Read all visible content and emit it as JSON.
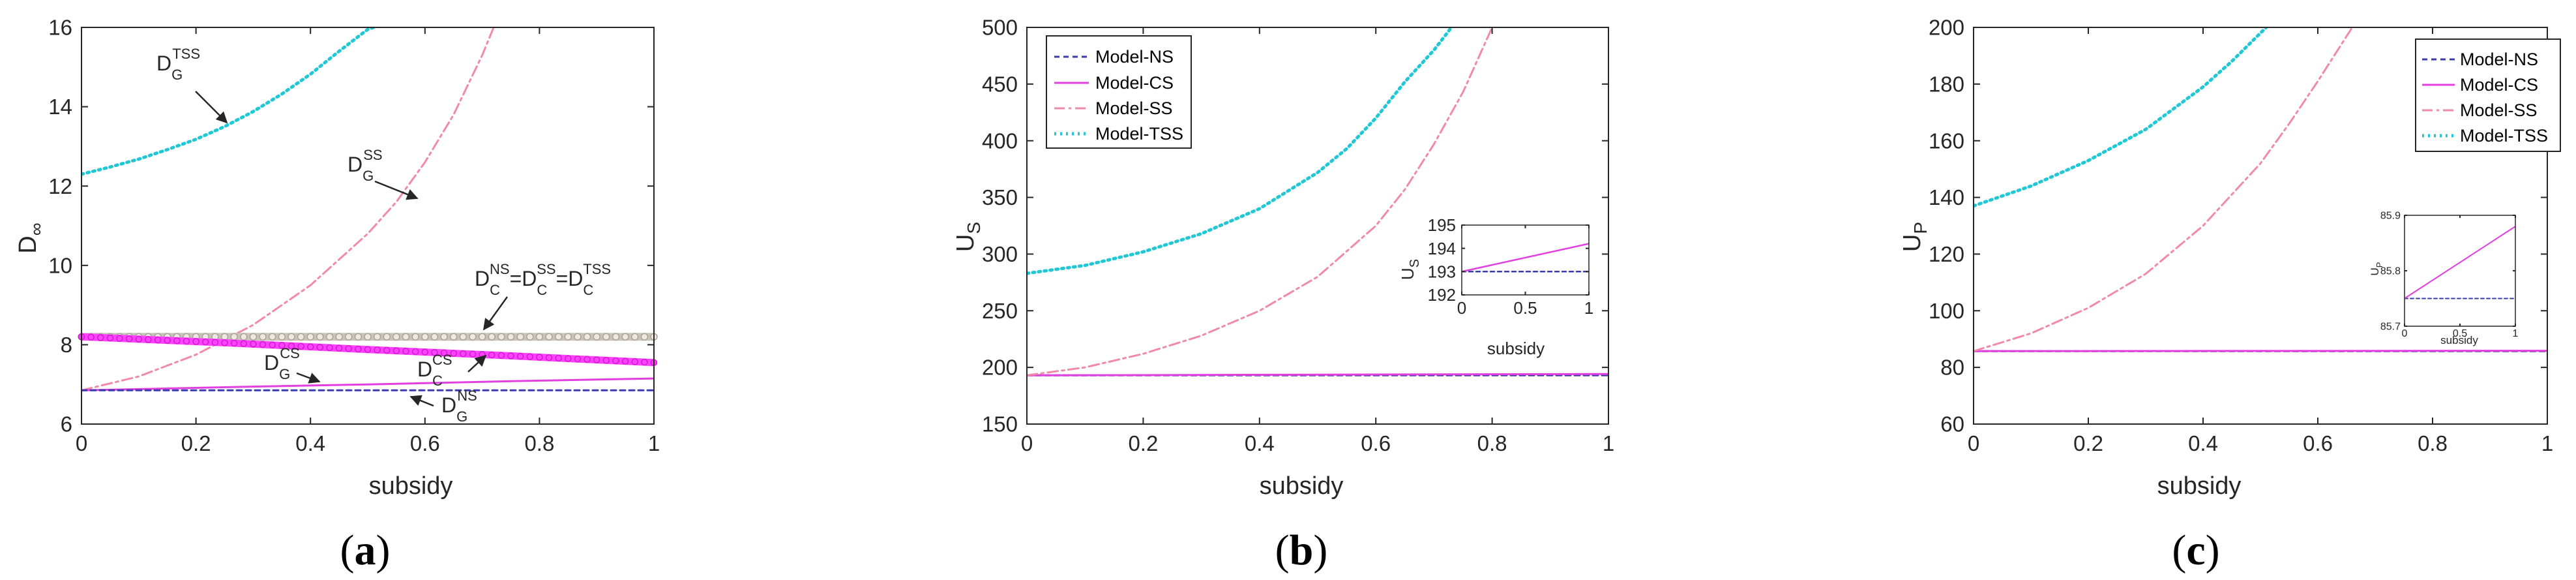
{
  "colors": {
    "ns": "#3b3bb0",
    "cs": "#e23fe0",
    "ss": "#f08aa8",
    "tss": "#22c7d6",
    "dc_ns_band": "#c9c3b8",
    "dc_cs_band": "#ff40ff",
    "axis": "#262626"
  },
  "legend_labels": [
    "Model-NS",
    "Model-CS",
    "Model-SS",
    "Model-TSS"
  ],
  "chart_data": [
    {
      "id": "a",
      "type": "line",
      "panel_label": "(a)",
      "panel_letter": "a",
      "xlabel": "subsidy",
      "ylabel_main": "D",
      "ylabel_sub": "∞",
      "xlim": [
        0,
        1
      ],
      "ylim": [
        6,
        16
      ],
      "xticks": [
        0,
        0.2,
        0.4,
        0.6,
        0.8,
        1
      ],
      "xtick_labels": [
        "0",
        "0.2",
        "0.4",
        "0.6",
        "0.8",
        "1"
      ],
      "yticks": [
        6,
        8,
        10,
        12,
        14,
        16
      ],
      "ytick_labels": [
        "6",
        "8",
        "10",
        "12",
        "14",
        "16"
      ],
      "series": [
        {
          "name": "D_G^TSS",
          "key": "tss",
          "dash": "3,6",
          "width": 5,
          "x": [
            0,
            0.05,
            0.1,
            0.15,
            0.2,
            0.25,
            0.3,
            0.35,
            0.4,
            0.45,
            0.5,
            0.51
          ],
          "y": [
            12.3,
            12.48,
            12.68,
            12.92,
            13.18,
            13.5,
            13.88,
            14.32,
            14.82,
            15.4,
            15.95,
            16.0
          ]
        },
        {
          "name": "D_G^SS",
          "key": "ss",
          "dash": "16,6,4,6",
          "width": 3,
          "x": [
            0,
            0.1,
            0.2,
            0.3,
            0.4,
            0.5,
            0.55,
            0.6,
            0.65,
            0.7,
            0.72
          ],
          "y": [
            6.85,
            7.2,
            7.75,
            8.5,
            9.5,
            10.8,
            11.6,
            12.6,
            13.8,
            15.3,
            16.0
          ]
        },
        {
          "name": "D_C^NS=D_C^SS=D_C^TSS",
          "key": "dc_ns_band",
          "dash": "",
          "width": 12,
          "x": [
            0,
            1
          ],
          "y": [
            8.2,
            8.2
          ]
        },
        {
          "name": "D_C^CS",
          "key": "dc_cs_band",
          "dash": "",
          "width": 11,
          "x": [
            0,
            0.25,
            0.5,
            0.75,
            1
          ],
          "y": [
            8.2,
            8.05,
            7.88,
            7.72,
            7.55
          ]
        },
        {
          "name": "D_G^CS",
          "key": "cs",
          "dash": "",
          "width": 3,
          "x": [
            0,
            0.25,
            0.5,
            0.75,
            1
          ],
          "y": [
            6.85,
            6.93,
            7.0,
            7.08,
            7.15
          ]
        },
        {
          "name": "D_G^NS",
          "key": "ns",
          "dash": "8,6",
          "width": 3,
          "x": [
            0,
            1
          ],
          "y": [
            6.85,
            6.85
          ]
        }
      ],
      "annotations": [
        {
          "base": "D",
          "sub": "G",
          "sup": "TSS"
        },
        {
          "base": "D",
          "sub": "G",
          "sup": "SS"
        },
        {
          "base": "D",
          "sub": "C",
          "sup": "NS",
          "eq1_sub": "C",
          "eq1_sup": "SS",
          "eq2_sub": "C",
          "eq2_sup": "TSS"
        },
        {
          "base": "D",
          "sub": "G",
          "sup": "CS"
        },
        {
          "base": "D",
          "sub": "C",
          "sup": "CS"
        },
        {
          "base": "D",
          "sub": "G",
          "sup": "NS"
        }
      ]
    },
    {
      "id": "b",
      "type": "line",
      "panel_label": "(b)",
      "panel_letter": "b",
      "xlabel": "subsidy",
      "ylabel_main": "U",
      "ylabel_sub": "S",
      "xlim": [
        0,
        1
      ],
      "ylim": [
        150,
        500
      ],
      "xticks": [
        0,
        0.2,
        0.4,
        0.6,
        0.8,
        1
      ],
      "xtick_labels": [
        "0",
        "0.2",
        "0.4",
        "0.6",
        "0.8",
        "1"
      ],
      "yticks": [
        150,
        200,
        250,
        300,
        350,
        400,
        450,
        500
      ],
      "ytick_labels": [
        "150",
        "200",
        "250",
        "300",
        "350",
        "400",
        "450",
        "500"
      ],
      "legend_position": "top-left",
      "series": [
        {
          "name": "Model-NS",
          "key": "ns",
          "dash": "8,6",
          "width": 3,
          "x": [
            0,
            1
          ],
          "y": [
            193,
            193
          ]
        },
        {
          "name": "Model-CS",
          "key": "cs",
          "dash": "",
          "width": 3,
          "x": [
            0,
            1
          ],
          "y": [
            193,
            194.2
          ]
        },
        {
          "name": "Model-SS",
          "key": "ss",
          "dash": "16,6,4,6",
          "width": 3,
          "x": [
            0,
            0.1,
            0.2,
            0.3,
            0.4,
            0.5,
            0.6,
            0.65,
            0.7,
            0.75,
            0.8
          ],
          "y": [
            193,
            200,
            212,
            228,
            250,
            280,
            325,
            357,
            397,
            443,
            500
          ]
        },
        {
          "name": "Model-TSS",
          "key": "tss",
          "dash": "3,6",
          "width": 5,
          "x": [
            0,
            0.1,
            0.2,
            0.3,
            0.4,
            0.5,
            0.55,
            0.6,
            0.65,
            0.7,
            0.73
          ],
          "y": [
            283,
            290,
            302,
            318,
            340,
            372,
            393,
            420,
            452,
            480,
            500
          ]
        }
      ],
      "inset": {
        "xlabel": "subsidy",
        "ylabel_main": "U",
        "ylabel_sub": "S",
        "xlim": [
          0,
          1
        ],
        "ylim": [
          192,
          195
        ],
        "xticks": [
          0,
          0.5,
          1
        ],
        "xtick_labels": [
          "0",
          "0.5",
          "1"
        ],
        "yticks": [
          192,
          193,
          194,
          195
        ],
        "ytick_labels": [
          "192",
          "193",
          "194",
          "195"
        ],
        "series": [
          {
            "name": "Model-NS",
            "key": "ns",
            "dash": "6,5",
            "width": 2.5,
            "x": [
              0,
              1
            ],
            "y": [
              193,
              193
            ]
          },
          {
            "name": "Model-CS",
            "key": "cs",
            "dash": "",
            "width": 2.5,
            "x": [
              0,
              1
            ],
            "y": [
              193,
              194.2
            ]
          }
        ]
      }
    },
    {
      "id": "c",
      "type": "line",
      "panel_label": "(c)",
      "panel_letter": "c",
      "xlabel": "subsidy",
      "ylabel_main": "U",
      "ylabel_sub": "P",
      "xlim": [
        0,
        1
      ],
      "ylim": [
        60,
        200
      ],
      "xticks": [
        0,
        0.2,
        0.4,
        0.6,
        0.8,
        1
      ],
      "xtick_labels": [
        "0",
        "0.2",
        "0.4",
        "0.6",
        "0.8",
        "1"
      ],
      "yticks": [
        60,
        80,
        100,
        120,
        140,
        160,
        180,
        200
      ],
      "ytick_labels": [
        "60",
        "80",
        "100",
        "120",
        "140",
        "160",
        "180",
        "200"
      ],
      "legend_position": "top-right",
      "series": [
        {
          "name": "Model-NS",
          "key": "ns",
          "dash": "8,6",
          "width": 3,
          "x": [
            0,
            1
          ],
          "y": [
            85.75,
            85.75
          ]
        },
        {
          "name": "Model-CS",
          "key": "cs",
          "dash": "",
          "width": 3,
          "x": [
            0,
            1
          ],
          "y": [
            85.75,
            85.88
          ]
        },
        {
          "name": "Model-SS",
          "key": "ss",
          "dash": "16,6,4,6",
          "width": 3,
          "x": [
            0,
            0.1,
            0.2,
            0.3,
            0.4,
            0.5,
            0.55,
            0.6,
            0.66
          ],
          "y": [
            85.75,
            92,
            101,
            113,
            130,
            152,
            166,
            181,
            200
          ]
        },
        {
          "name": "Model-TSS",
          "key": "tss",
          "dash": "3,6",
          "width": 5,
          "x": [
            0,
            0.1,
            0.2,
            0.3,
            0.4,
            0.45,
            0.5,
            0.51
          ],
          "y": [
            137,
            144,
            153,
            164,
            179,
            188,
            198,
            200
          ]
        }
      ],
      "inset": {
        "xlabel": "subsidy",
        "ylabel_main": "U",
        "ylabel_sub": "P",
        "xlim": [
          0,
          1
        ],
        "ylim": [
          85.7,
          85.9
        ],
        "xticks": [
          0,
          0.5,
          1
        ],
        "xtick_labels": [
          "0",
          "0.5",
          "1"
        ],
        "yticks": [
          85.7,
          85.8,
          85.9
        ],
        "ytick_labels": [
          "85.7",
          "85.8",
          "85.9"
        ],
        "series": [
          {
            "name": "Model-NS",
            "key": "ns",
            "dash": "5,4",
            "width": 2,
            "x": [
              0,
              1
            ],
            "y": [
              85.75,
              85.75
            ]
          },
          {
            "name": "Model-CS",
            "key": "cs",
            "dash": "",
            "width": 2,
            "x": [
              0,
              1
            ],
            "y": [
              85.75,
              85.88
            ]
          }
        ]
      }
    }
  ]
}
